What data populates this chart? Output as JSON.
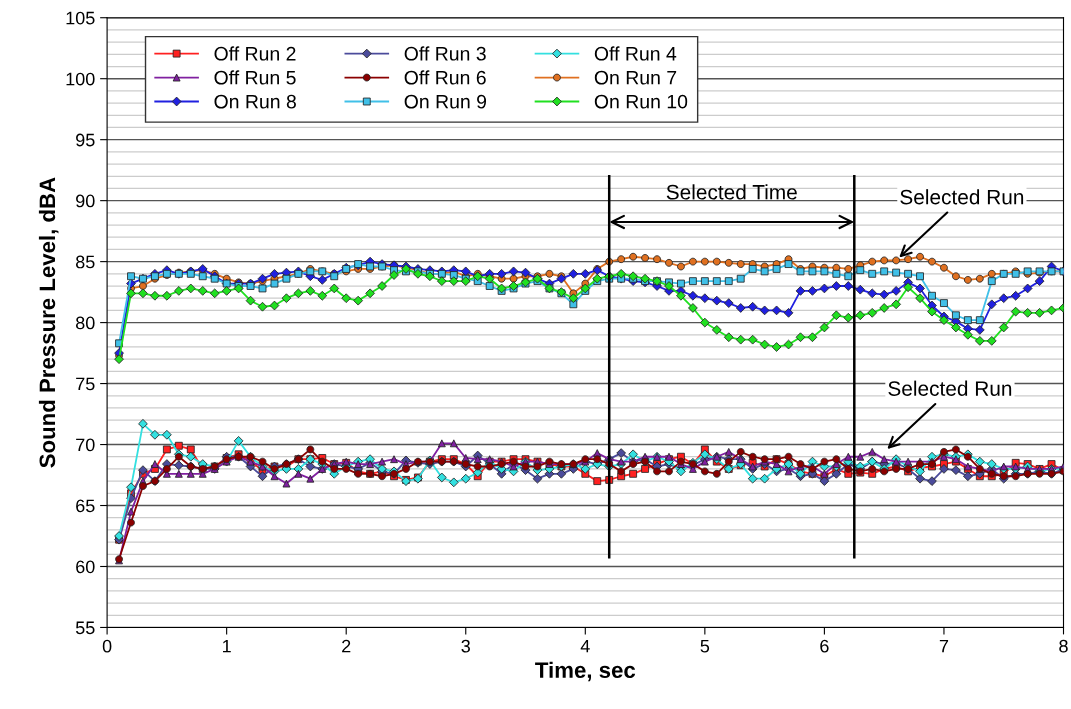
{
  "chart_data": {
    "type": "line",
    "xlabel": "Time, sec",
    "ylabel": "Sound Pressure Level, dBA",
    "x": [
      0.1,
      0.2,
      0.3,
      0.4,
      0.5,
      0.6,
      0.7,
      0.8,
      0.9,
      1.0,
      1.1,
      1.2,
      1.3,
      1.4,
      1.5,
      1.6,
      1.7,
      1.8,
      1.9,
      2.0,
      2.1,
      2.2,
      2.3,
      2.4,
      2.5,
      2.6,
      2.7,
      2.8,
      2.9,
      3.0,
      3.1,
      3.2,
      3.3,
      3.4,
      3.5,
      3.6,
      3.7,
      3.8,
      3.9,
      4.0,
      4.1,
      4.2,
      4.3,
      4.4,
      4.5,
      4.6,
      4.7,
      4.8,
      4.9,
      5.0,
      5.1,
      5.2,
      5.3,
      5.4,
      5.5,
      5.6,
      5.7,
      5.8,
      5.9,
      6.0,
      6.1,
      6.2,
      6.3,
      6.4,
      6.5,
      6.6,
      6.7,
      6.8,
      6.9,
      7.0,
      7.1,
      7.2,
      7.3,
      7.4,
      7.5,
      7.6,
      7.7,
      7.8,
      7.9,
      8.0
    ],
    "series": [
      {
        "name": "Off Run 2",
        "color": "#ff2020",
        "marker": "square",
        "values": [
          62.2,
          66.0,
          67.6,
          68.0,
          69.6,
          69.9,
          69.6,
          68.0,
          68.2,
          68.9,
          69.2,
          68.6,
          67.9,
          68.2,
          68.2,
          68.8,
          68.8,
          68.9,
          68.4,
          68.5,
          67.8,
          67.6,
          67.8,
          67.4,
          67.1,
          67.3,
          68.6,
          68.8,
          68.8,
          68.4,
          67.4,
          68.6,
          68.6,
          68.8,
          68.8,
          68.6,
          68.4,
          68.2,
          68.2,
          67.6,
          67.0,
          67.1,
          67.4,
          67.6,
          68.0,
          68.4,
          68.8,
          69.0,
          68.4,
          69.6,
          68.6,
          68.0,
          68.3,
          68.5,
          68.2,
          68.8,
          68.4,
          67.8,
          67.6,
          67.4,
          68.0,
          67.6,
          67.7,
          67.6,
          68.0,
          68.2,
          67.8,
          68.1,
          68.2,
          68.4,
          68.6,
          68.0,
          67.4,
          67.4,
          67.6,
          68.5,
          68.4,
          68.0,
          68.4,
          67.9
        ]
      },
      {
        "name": "Off Run 3",
        "color": "#4b4b9b",
        "marker": "diamond",
        "values": [
          62.2,
          65.6,
          67.9,
          67.0,
          68.4,
          68.3,
          68.2,
          68.0,
          68.0,
          69.0,
          69.0,
          68.2,
          67.4,
          68.2,
          68.4,
          68.8,
          68.2,
          68.0,
          68.4,
          68.2,
          68.0,
          68.5,
          67.8,
          67.6,
          68.7,
          68.5,
          68.4,
          68.6,
          68.6,
          68.2,
          69.1,
          68.4,
          67.6,
          68.4,
          67.9,
          67.2,
          67.6,
          67.6,
          68.0,
          68.6,
          68.4,
          68.8,
          69.3,
          68.6,
          68.8,
          68.2,
          68.4,
          68.0,
          68.3,
          68.8,
          69.0,
          68.8,
          68.8,
          68.0,
          68.4,
          67.8,
          68.0,
          67.4,
          67.6,
          67.0,
          67.6,
          68.4,
          68.0,
          68.6,
          68.4,
          68.5,
          68.0,
          67.2,
          67.0,
          68.0,
          67.9,
          67.4,
          67.6,
          68.0,
          67.2,
          67.6,
          67.6,
          67.8,
          67.6,
          68.0
        ]
      },
      {
        "name": "Off Run 4",
        "color": "#33e0e0",
        "marker": "diamond",
        "values": [
          62.5,
          66.5,
          71.7,
          70.8,
          70.8,
          69.2,
          69.0,
          68.4,
          68.2,
          68.6,
          70.3,
          69.0,
          68.2,
          67.8,
          68.0,
          68.0,
          68.8,
          68.4,
          67.6,
          68.2,
          68.6,
          68.8,
          68.0,
          67.8,
          67.0,
          67.2,
          68.7,
          67.3,
          66.9,
          67.2,
          67.7,
          68.6,
          68.0,
          67.8,
          68.6,
          67.9,
          68.0,
          68.2,
          68.4,
          68.0,
          68.4,
          68.2,
          68.4,
          69.2,
          68.6,
          69.0,
          68.6,
          67.8,
          68.5,
          69.2,
          68.8,
          68.0,
          68.4,
          67.2,
          67.2,
          68.0,
          68.4,
          67.6,
          68.6,
          68.2,
          68.2,
          68.6,
          68.2,
          68.6,
          68.0,
          68.8,
          68.2,
          67.8,
          69.0,
          69.2,
          69.0,
          69.2,
          68.6,
          68.4,
          68.0,
          68.0,
          68.2,
          67.8,
          68.0,
          68.0
        ]
      },
      {
        "name": "Off Run 5",
        "color": "#8020a0",
        "marker": "triangle",
        "values": [
          60.5,
          64.5,
          67.0,
          68.4,
          67.6,
          67.6,
          67.6,
          67.6,
          68.0,
          68.6,
          69.0,
          68.6,
          68.2,
          67.4,
          66.8,
          67.6,
          67.2,
          68.0,
          68.4,
          68.6,
          68.4,
          68.4,
          68.6,
          68.8,
          68.4,
          68.6,
          68.6,
          70.1,
          70.1,
          68.9,
          68.8,
          68.8,
          68.6,
          68.2,
          68.6,
          68.6,
          68.4,
          68.4,
          68.4,
          68.6,
          69.3,
          68.8,
          68.6,
          68.6,
          69.0,
          69.0,
          69.0,
          68.4,
          68.0,
          68.6,
          69.0,
          69.4,
          68.8,
          68.2,
          68.6,
          68.4,
          67.8,
          68.2,
          68.2,
          67.6,
          68.4,
          69.0,
          69.0,
          69.4,
          68.8,
          68.6,
          68.6,
          68.6,
          68.6,
          69.0,
          68.8,
          68.2,
          68.0,
          67.8,
          68.2,
          68.2,
          68.0,
          68.0,
          68.0,
          68.2
        ]
      },
      {
        "name": "Off Run 6",
        "color": "#8b0000",
        "marker": "circle",
        "values": [
          60.6,
          63.6,
          66.6,
          67.0,
          68.0,
          69.0,
          68.2,
          68.0,
          68.2,
          68.8,
          69.0,
          69.0,
          68.6,
          68.0,
          68.4,
          68.8,
          69.6,
          68.6,
          68.0,
          68.0,
          67.6,
          67.6,
          67.4,
          67.6,
          68.0,
          68.6,
          68.6,
          68.6,
          68.6,
          68.4,
          68.2,
          68.2,
          68.4,
          68.6,
          68.2,
          68.2,
          68.6,
          68.4,
          68.4,
          68.8,
          68.8,
          68.4,
          67.8,
          68.4,
          68.6,
          67.8,
          67.8,
          68.6,
          68.4,
          67.8,
          67.6,
          68.6,
          69.4,
          69.0,
          68.8,
          68.8,
          69.0,
          68.4,
          68.0,
          68.6,
          68.8,
          68.0,
          67.8,
          68.0,
          67.8,
          68.0,
          68.0,
          68.4,
          68.4,
          69.4,
          69.6,
          69.0,
          68.0,
          67.6,
          67.4,
          67.4,
          67.6,
          67.6,
          67.6,
          67.8
        ]
      },
      {
        "name": "On Run 7",
        "color": "#e07020",
        "marker": "circle",
        "values": [
          77.3,
          82.8,
          83.0,
          83.6,
          83.9,
          84.1,
          84.2,
          84.3,
          84.0,
          83.6,
          83.3,
          83.2,
          83.4,
          83.6,
          83.8,
          84.0,
          84.4,
          84.2,
          84.0,
          84.2,
          84.4,
          84.4,
          84.6,
          84.7,
          84.5,
          84.3,
          84.0,
          84.0,
          84.2,
          83.8,
          84.0,
          83.8,
          83.6,
          83.6,
          83.8,
          83.8,
          84.0,
          83.8,
          82.4,
          83.2,
          84.4,
          85.0,
          85.2,
          85.4,
          85.3,
          85.2,
          84.9,
          84.6,
          85.0,
          85.0,
          85.0,
          84.9,
          84.8,
          84.8,
          84.6,
          84.8,
          85.2,
          84.4,
          84.6,
          84.5,
          84.5,
          84.4,
          84.7,
          85.0,
          85.1,
          85.1,
          85.2,
          85.4,
          85.0,
          84.5,
          83.8,
          83.5,
          83.6,
          84.0,
          84.0,
          84.2,
          84.0,
          84.1,
          84.2,
          84.2
        ]
      },
      {
        "name": "On Run 8",
        "color": "#2020e0",
        "marker": "diamond",
        "values": [
          77.5,
          83.2,
          83.6,
          84.0,
          84.3,
          84.0,
          84.2,
          84.4,
          83.8,
          83.2,
          83.2,
          83.2,
          83.6,
          84.0,
          84.1,
          84.2,
          83.8,
          83.5,
          84.0,
          84.5,
          84.7,
          85.0,
          84.8,
          84.7,
          84.6,
          84.4,
          84.3,
          84.2,
          84.3,
          84.2,
          83.8,
          84.0,
          84.0,
          84.2,
          84.1,
          83.6,
          83.2,
          83.6,
          84.0,
          84.0,
          84.3,
          83.8,
          83.6,
          83.4,
          83.3,
          83.0,
          82.6,
          82.6,
          82.2,
          82.0,
          81.8,
          81.6,
          81.2,
          81.3,
          81.0,
          81.0,
          80.8,
          82.6,
          82.6,
          82.8,
          83.0,
          83.0,
          82.7,
          82.4,
          82.3,
          82.6,
          83.3,
          82.8,
          81.4,
          80.5,
          80.1,
          79.5,
          79.4,
          81.5,
          82.0,
          82.2,
          82.8,
          83.4,
          84.6,
          84.2
        ]
      },
      {
        "name": "On Run 9",
        "color": "#40c0e8",
        "marker": "square",
        "values": [
          78.3,
          83.8,
          83.6,
          83.8,
          84.0,
          84.0,
          84.0,
          83.8,
          83.6,
          83.2,
          83.0,
          83.0,
          82.8,
          83.2,
          83.6,
          84.0,
          84.2,
          84.2,
          83.8,
          84.4,
          84.8,
          84.6,
          84.6,
          84.3,
          84.2,
          84.2,
          84.0,
          84.0,
          83.9,
          83.6,
          83.4,
          83.0,
          82.6,
          82.8,
          83.2,
          83.4,
          82.8,
          82.4,
          81.5,
          82.6,
          83.4,
          83.6,
          83.6,
          83.6,
          83.4,
          83.4,
          83.3,
          83.2,
          83.4,
          83.4,
          83.4,
          83.4,
          83.6,
          84.4,
          84.2,
          84.4,
          84.8,
          84.2,
          84.2,
          84.2,
          84.0,
          83.8,
          84.3,
          84.0,
          84.2,
          84.1,
          84.0,
          83.8,
          82.2,
          81.6,
          80.6,
          80.2,
          80.2,
          83.4,
          84.0,
          84.0,
          84.2,
          84.2,
          84.2,
          84.2
        ]
      },
      {
        "name": "On Run 10",
        "color": "#20e020",
        "marker": "diamond",
        "values": [
          77.0,
          82.4,
          82.4,
          82.2,
          82.2,
          82.6,
          82.8,
          82.6,
          82.4,
          82.6,
          82.8,
          81.8,
          81.3,
          81.4,
          82.0,
          82.4,
          82.6,
          82.2,
          82.8,
          82.0,
          81.8,
          82.4,
          83.0,
          83.9,
          84.4,
          84.0,
          83.8,
          83.4,
          83.4,
          83.4,
          83.8,
          83.6,
          82.8,
          83.0,
          83.3,
          83.6,
          82.8,
          82.5,
          82.0,
          82.8,
          83.6,
          83.8,
          84.0,
          83.8,
          83.6,
          83.4,
          83.0,
          82.2,
          81.2,
          80.0,
          79.4,
          78.8,
          78.6,
          78.6,
          78.2,
          78.0,
          78.2,
          78.8,
          78.8,
          79.6,
          80.6,
          80.4,
          80.6,
          80.8,
          81.2,
          81.5,
          82.9,
          82.0,
          80.9,
          80.2,
          79.6,
          79.0,
          78.5,
          78.5,
          79.6,
          80.9,
          80.8,
          80.8,
          81.0,
          81.2
        ]
      }
    ],
    "xlim": [
      0,
      8
    ],
    "xticks": [
      0,
      1,
      2,
      3,
      4,
      5,
      6,
      7,
      8
    ],
    "ylim": [
      55,
      105
    ],
    "yticks": [
      55,
      60,
      65,
      70,
      75,
      80,
      85,
      90,
      95,
      100,
      105
    ],
    "grid": "y",
    "legend": "top left",
    "line_style": "solid",
    "ref_lines": [
      {
        "axis": "x",
        "value": 4.2,
        "color": "#000000"
      },
      {
        "axis": "x",
        "value": 6.25,
        "color": "#000000"
      }
    ],
    "annotations": [
      "Selected Time",
      {
        "text": "Selected Run",
        "x": 6.6,
        "y": 85.1
      },
      {
        "text": "Selected Run",
        "x": 6.5,
        "y": 69.4
      }
    ]
  }
}
